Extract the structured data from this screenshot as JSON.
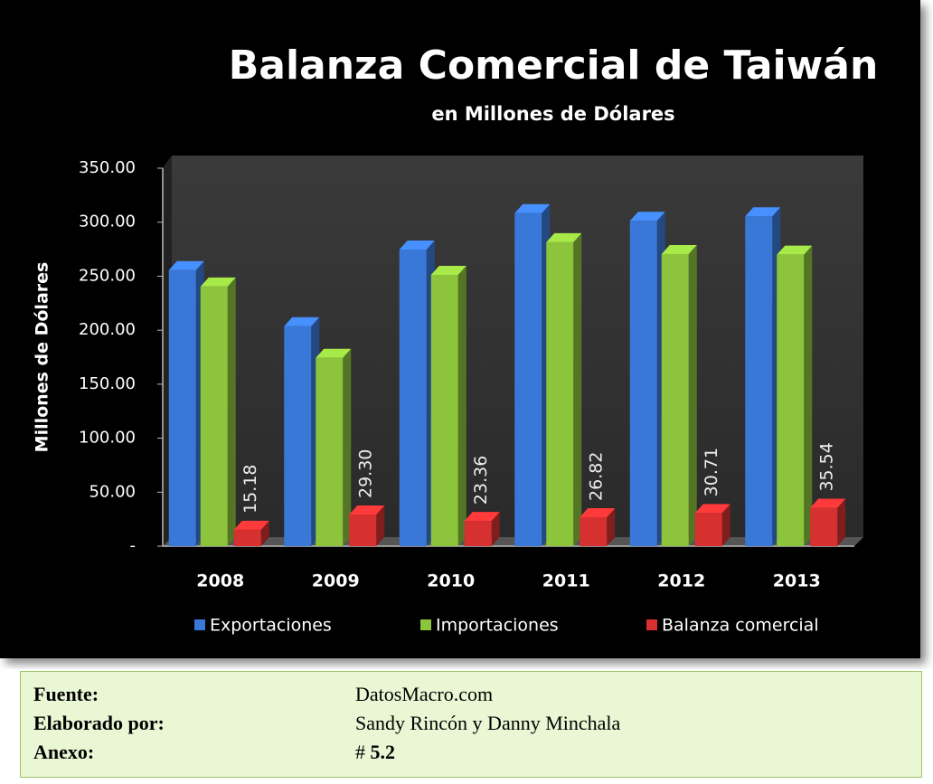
{
  "chart_data": {
    "type": "bar3d",
    "title": "Balanza Comercial de Taiwán",
    "subtitle": "en Millones de Dólares",
    "y_label": "Millones de Dólares",
    "categories": [
      "2008",
      "2009",
      "2010",
      "2011",
      "2012",
      "2013"
    ],
    "series": [
      {
        "name": "Exportaciones",
        "color": "#3a78d8",
        "values": [
          255.6,
          203.7,
          274.6,
          308.3,
          301.2,
          305.4
        ]
      },
      {
        "name": "Importaciones",
        "color": "#8cc43c",
        "values": [
          240.4,
          174.4,
          251.2,
          281.4,
          270.5,
          269.9
        ]
      },
      {
        "name": "Balanza comercial",
        "color": "#d63030",
        "values": [
          15.18,
          29.3,
          23.36,
          26.82,
          30.71,
          35.54
        ],
        "value_labels": [
          "15.18",
          "29.30",
          "23.36",
          "26.82",
          "30.71",
          "35.54"
        ]
      }
    ],
    "ylim": [
      0,
      350
    ],
    "yticks": [
      {
        "value": 0,
        "label": "-"
      },
      {
        "value": 50,
        "label": "50.00"
      },
      {
        "value": 100,
        "label": "100.00"
      },
      {
        "value": 150,
        "label": "150.00"
      },
      {
        "value": 200,
        "label": "200.00"
      },
      {
        "value": 250,
        "label": "250.00"
      },
      {
        "value": 300,
        "label": "300.00"
      },
      {
        "value": 350,
        "label": "350.00"
      }
    ],
    "legend": "bottom"
  },
  "footer": {
    "rows": [
      {
        "label": "Fuente:",
        "value": "DatosMacro.com"
      },
      {
        "label": "Elaborado por:",
        "value": "Sandy Rincón  y Danny Minchala"
      },
      {
        "label": "Anexo:",
        "prefix": "#",
        "value": "5.2"
      }
    ]
  }
}
